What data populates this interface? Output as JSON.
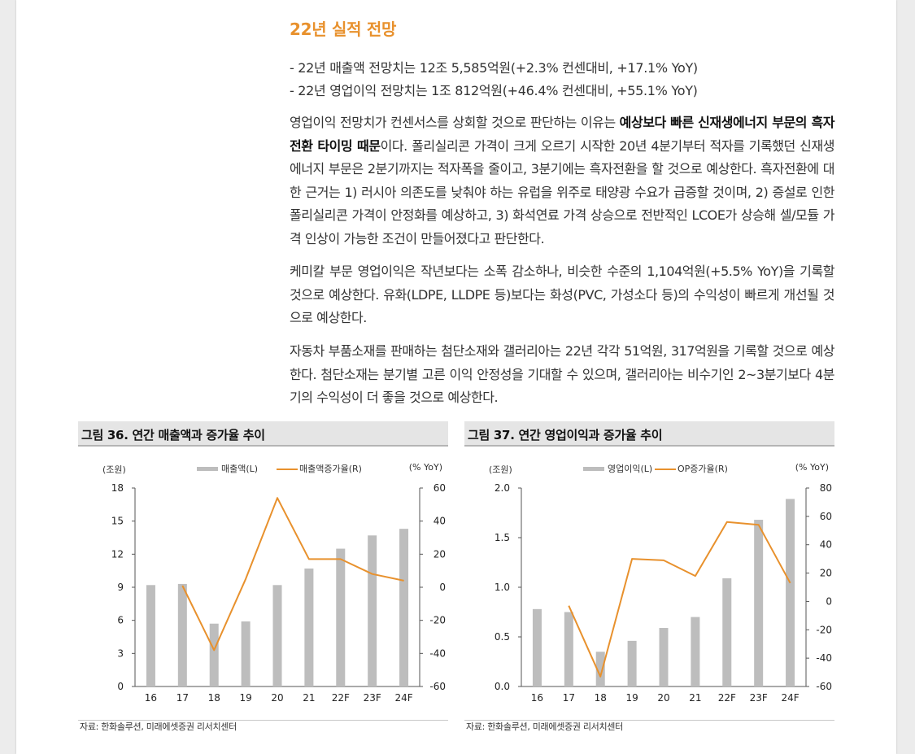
{
  "heading": "22년 실적 전망",
  "bullets": [
    "- 22년 매출액 전망치는 12조 5,585억원(+2.3% 컨센대비, +17.1% YoY)",
    "- 22년 영업이익 전망치는 1조 812억원(+46.4% 컨센대비, +55.1% YoY)"
  ],
  "paragraphs": {
    "p1_a": "영업이익 전망치가 컨센서스를 상회할 것으로 판단하는 이유는 ",
    "p1_bold": "예상보다 빠른 신재생에너지 부문의 흑자전환 타이밍 때문",
    "p1_b": "이다. 폴리실리콘 가격이 크게 오르기 시작한 20년 4분기부터 적자를 기록했던 신재생에너지 부문은 2분기까지는 적자폭을 줄이고, 3분기에는 흑자전환을 할 것으로 예상한다. 흑자전환에 대한 근거는 1) 러시아 의존도를 낮춰야 하는 유럽을 위주로 태양광 수요가 급증할 것이며, 2) 증설로 인한 폴리실리콘 가격이 안정화를 예상하고, 3) 화석연료 가격 상승으로 전반적인 LCOE가 상승해 셀/모듈 가격 인상이 가능한 조건이 만들어졌다고 판단한다.",
    "p2": "케미칼 부문 영업이익은 작년보다는 소폭 감소하나, 비슷한 수준의 1,104억원(+5.5% YoY)을 기록할 것으로 예상한다. 유화(LDPE, LLDPE 등)보다는 화성(PVC, 가성소다 등)의 수익성이 빠르게 개선될 것으로 예상한다.",
    "p3": "자동차 부품소재를 판매하는 첨단소재와 갤러리아는 22년 각각 51억원, 317억원을 기록할 것으로 예상한다. 첨단소재는 분기별 고른 이익 안정성을 기대할 수 있으며, 갤러리아는 비수기인 2~3분기보다 4분기의 수익성이 더 좋을 것으로 예상한다."
  },
  "figures": {
    "fig36": {
      "title": "그림 36. 연간 매출액과 증가율 추이",
      "source": "자료: 한화솔루션, 미래에셋증권 리서치센터"
    },
    "fig37": {
      "title": "그림 37. 연간 영업이익과 증가율 추이",
      "source": "자료: 한화솔루션, 미래에셋증권 리서치센터"
    }
  },
  "colors": {
    "accent": "#e8912d",
    "bar": "#bdbdbd",
    "line": "#e8912d"
  },
  "chart_data": [
    {
      "type": "bar",
      "title": "그림 36. 연간 매출액과 증가율 추이",
      "categories": [
        "16",
        "17",
        "18",
        "19",
        "20",
        "21",
        "22F",
        "23F",
        "24F"
      ],
      "left_unit": "(조원)",
      "right_unit": "(% YoY)",
      "ylim": [
        0,
        18
      ],
      "yticks": [
        "0",
        "3",
        "6",
        "9",
        "12",
        "15",
        "18"
      ],
      "ylim_right": [
        -60,
        60
      ],
      "yticks_right": [
        "-60",
        "-40",
        "-20",
        "0",
        "20",
        "40",
        "60"
      ],
      "series": [
        {
          "name": "매출액(L)",
          "type": "bar",
          "axis": "left",
          "values": [
            9.2,
            9.3,
            5.7,
            5.9,
            9.2,
            10.7,
            12.5,
            13.7,
            14.3
          ]
        },
        {
          "name": "매출액증가율(R)",
          "type": "line",
          "axis": "right",
          "values": [
            null,
            1,
            -38,
            5,
            54,
            17,
            17,
            8,
            4
          ]
        }
      ]
    },
    {
      "type": "bar",
      "title": "그림 37. 연간 영업이익과 증가율 추이",
      "categories": [
        "16",
        "17",
        "18",
        "19",
        "20",
        "21",
        "22F",
        "23F",
        "24F"
      ],
      "left_unit": "(조원)",
      "right_unit": "(% YoY)",
      "ylim": [
        0,
        2.0
      ],
      "yticks": [
        "0.0",
        "0.5",
        "1.0",
        "1.5",
        "2.0"
      ],
      "ylim_right": [
        -60,
        80
      ],
      "yticks_right": [
        "-60",
        "-40",
        "-20",
        "0",
        "20",
        "40",
        "60",
        "80"
      ],
      "series": [
        {
          "name": "영업이익(L)",
          "type": "bar",
          "axis": "left",
          "values": [
            0.78,
            0.75,
            0.35,
            0.46,
            0.59,
            0.7,
            1.09,
            1.68,
            1.89
          ]
        },
        {
          "name": "OP증가율(R)",
          "type": "line",
          "axis": "right",
          "values": [
            null,
            -3,
            -53,
            30,
            29,
            18,
            56,
            54,
            13
          ]
        }
      ]
    }
  ]
}
